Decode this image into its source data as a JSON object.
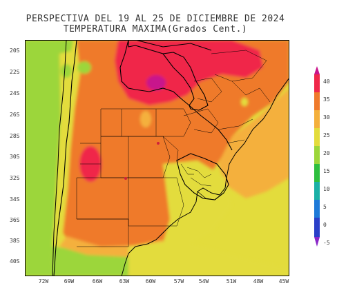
{
  "title": {
    "line1": "PERSPECTIVA DEL 19 AL 25 DE DICIEMBRE DE 2024",
    "line2": "TEMPERATURA MAXIMA(Grados Cent.)"
  },
  "map": {
    "lat_labels": [
      "20S",
      "22S",
      "24S",
      "26S",
      "28S",
      "30S",
      "32S",
      "34S",
      "36S",
      "38S",
      "40S"
    ],
    "lon_labels": [
      "72W",
      "69W",
      "66W",
      "63W",
      "60W",
      "57W",
      "54W",
      "51W",
      "48W",
      "45W"
    ]
  },
  "colorbar": {
    "labels": [
      "40",
      "35",
      "30",
      "25",
      "20",
      "15",
      "10",
      "5",
      "0",
      "-5"
    ],
    "colors": {
      "over40": "#c8148c",
      "c35_40": "#f0284a",
      "c30_35": "#ef7a2c",
      "c25_30": "#f4b03c",
      "c20_25": "#e3dc3c",
      "c15_20": "#9cd63a",
      "c10_15": "#2ebf3e",
      "c5_10": "#1bb0a6",
      "c0_5": "#1e7ad8",
      "cm5_0": "#2a3fc8",
      "under_m5": "#8a26c8"
    }
  }
}
